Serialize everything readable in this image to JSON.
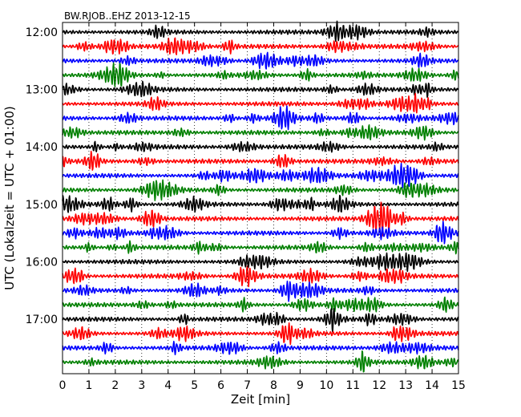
{
  "chart_data": {
    "type": "line",
    "title": "BW.RJOB..EHZ 2013-12-15",
    "xlabel": "Zeit  [min]",
    "ylabel": "UTC (Lokalzeit = UTC + 01:00)",
    "xlim": [
      0,
      15
    ],
    "x_ticks": [
      0,
      1,
      2,
      3,
      4,
      5,
      6,
      7,
      8,
      9,
      10,
      11,
      12,
      13,
      14,
      15
    ],
    "y_tick_labels": [
      "12:00",
      "13:00",
      "14:00",
      "15:00",
      "16:00",
      "17:00"
    ],
    "trace_interval_min": 15,
    "grid": true,
    "series_colors": [
      "#000000",
      "#ff0000",
      "#0000ff",
      "#008000"
    ],
    "series": [
      {
        "start": "12:00",
        "color": "#000000"
      },
      {
        "start": "12:15",
        "color": "#ff0000"
      },
      {
        "start": "12:30",
        "color": "#0000ff"
      },
      {
        "start": "12:45",
        "color": "#008000"
      },
      {
        "start": "13:00",
        "color": "#000000"
      },
      {
        "start": "13:15",
        "color": "#ff0000"
      },
      {
        "start": "13:30",
        "color": "#0000ff"
      },
      {
        "start": "13:45",
        "color": "#008000"
      },
      {
        "start": "14:00",
        "color": "#000000"
      },
      {
        "start": "14:15",
        "color": "#ff0000"
      },
      {
        "start": "14:30",
        "color": "#0000ff"
      },
      {
        "start": "14:45",
        "color": "#008000"
      },
      {
        "start": "15:00",
        "color": "#000000"
      },
      {
        "start": "15:15",
        "color": "#ff0000"
      },
      {
        "start": "15:30",
        "color": "#0000ff"
      },
      {
        "start": "15:45",
        "color": "#008000"
      },
      {
        "start": "16:00",
        "color": "#000000"
      },
      {
        "start": "16:15",
        "color": "#ff0000"
      },
      {
        "start": "16:30",
        "color": "#0000ff"
      },
      {
        "start": "16:45",
        "color": "#008000"
      },
      {
        "start": "17:00",
        "color": "#000000"
      },
      {
        "start": "17:15",
        "color": "#ff0000"
      },
      {
        "start": "17:30",
        "color": "#0000ff"
      },
      {
        "start": "17:45",
        "color": "#008000"
      }
    ]
  }
}
